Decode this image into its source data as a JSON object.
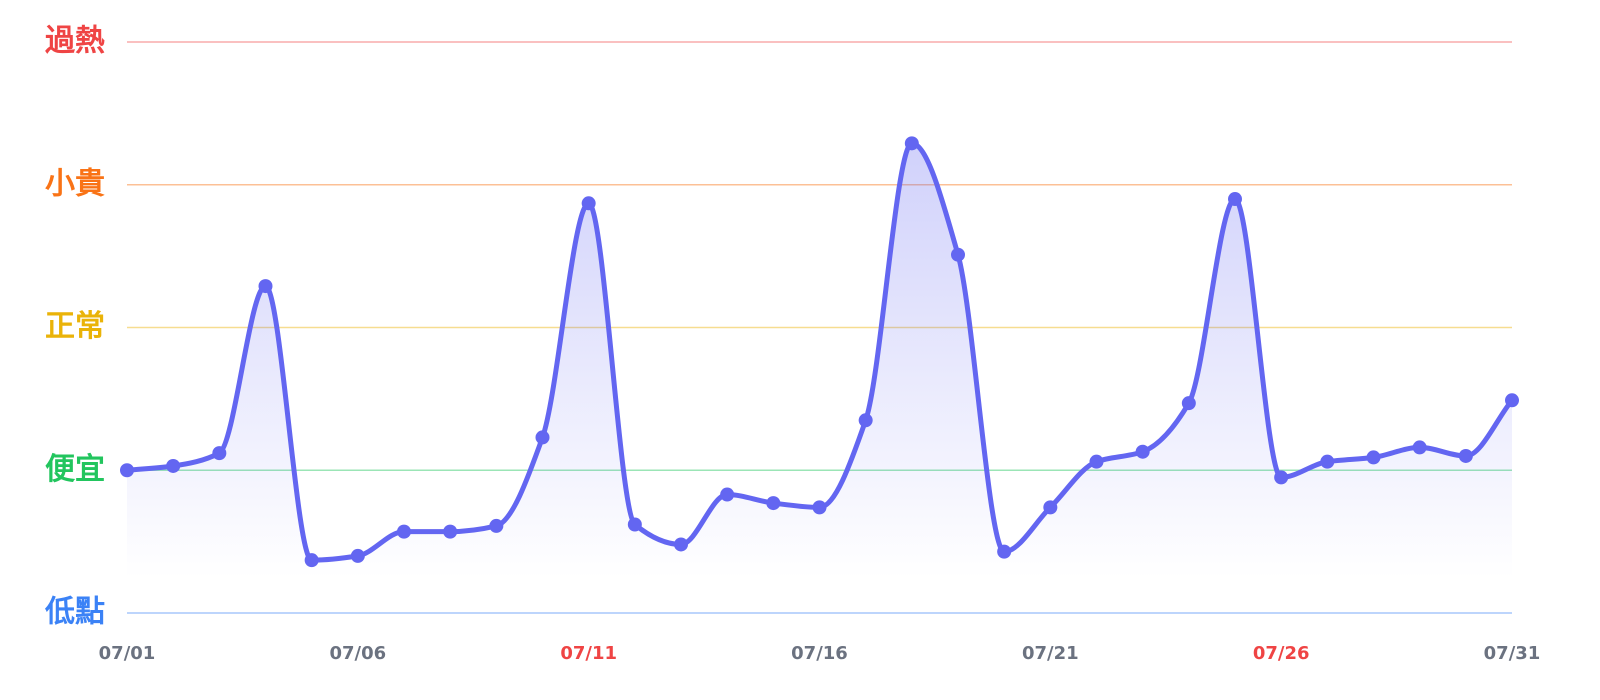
{
  "chart_data": {
    "type": "line",
    "categories": [
      "07/01",
      null,
      null,
      null,
      null,
      "07/06",
      null,
      null,
      null,
      null,
      "07/11",
      null,
      null,
      null,
      null,
      "07/16",
      null,
      null,
      null,
      null,
      "07/21",
      null,
      null,
      null,
      null,
      "07/26",
      null,
      null,
      null,
      null,
      "07/31"
    ],
    "label_colors": [
      "#6b7280",
      null,
      null,
      null,
      null,
      "#6b7280",
      null,
      null,
      null,
      null,
      "#ef4444",
      null,
      null,
      null,
      null,
      "#6b7280",
      null,
      null,
      null,
      null,
      "#6b7280",
      null,
      null,
      null,
      null,
      "#ef4444",
      null,
      null,
      null,
      null,
      "#6b7280"
    ],
    "values": [
      1.0,
      1.03,
      1.12,
      2.29,
      0.37,
      0.4,
      0.57,
      0.57,
      0.61,
      1.23,
      2.87,
      0.62,
      0.48,
      0.83,
      0.77,
      0.74,
      1.35,
      3.29,
      2.51,
      0.43,
      0.74,
      1.06,
      1.13,
      1.47,
      2.9,
      0.95,
      1.06,
      1.09,
      1.16,
      1.1,
      1.49
    ],
    "color": "#6366f1",
    "ylim": [
      0,
      4
    ],
    "yticks": [
      {
        "value": 0,
        "label": "低點",
        "color": "#3b82f6"
      },
      {
        "value": 1,
        "label": "便宜",
        "color": "#22c55e"
      },
      {
        "value": 2,
        "label": "正常",
        "color": "#eab308"
      },
      {
        "value": 3,
        "label": "小貴",
        "color": "#f97316"
      },
      {
        "value": 4,
        "label": "過熱",
        "color": "#ef4444"
      }
    ],
    "grid": true
  }
}
